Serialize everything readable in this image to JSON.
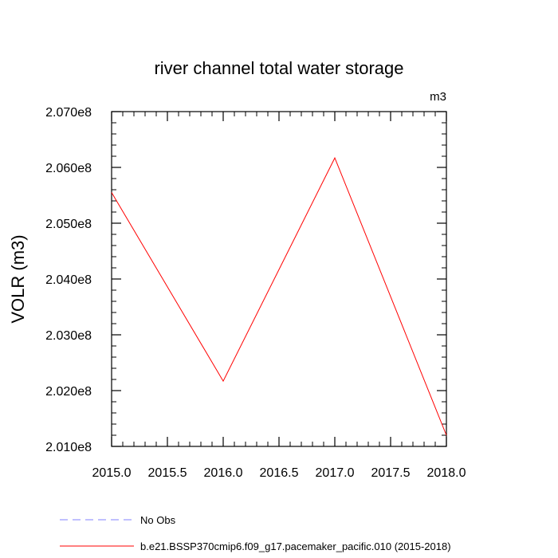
{
  "chart_data": {
    "type": "line",
    "title": "river channel total water storage",
    "units_label": "m3",
    "ylabel": "VOLR  (m3)",
    "xlabel": "",
    "xlim": [
      2015.0,
      2018.0
    ],
    "ylim": [
      201000000,
      207000000
    ],
    "x_ticks": [
      2015.0,
      2015.5,
      2016.0,
      2016.5,
      2017.0,
      2017.5,
      2018.0
    ],
    "x_tick_labels": [
      "2015.0",
      "2015.5",
      "2016.0",
      "2016.5",
      "2017.0",
      "2017.5",
      "2018.0"
    ],
    "y_ticks": [
      201000000,
      202000000,
      203000000,
      204000000,
      205000000,
      206000000,
      207000000
    ],
    "y_tick_labels": [
      "2.010e8",
      "2.020e8",
      "2.030e8",
      "2.040e8",
      "2.050e8",
      "2.060e8",
      "2.070e8"
    ],
    "grid": false,
    "legend_position": "bottom-left",
    "series": [
      {
        "name": "No Obs",
        "color": "#8080ff",
        "dash": "dashed",
        "x": [],
        "y": []
      },
      {
        "name": "b.e21.BSSP370cmip6.f09_g17.pacemaker_pacific.010 (2015-2018)",
        "color": "#ff0000",
        "dash": "solid",
        "x": [
          2015.0,
          2016.0,
          2017.0,
          2018.0
        ],
        "y": [
          205550000,
          202170000,
          206170000,
          201200000
        ]
      }
    ]
  }
}
